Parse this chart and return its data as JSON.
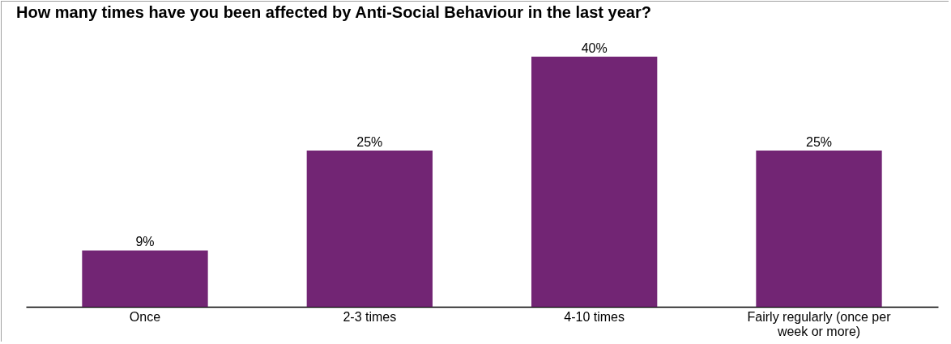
{
  "chart_data": {
    "type": "bar",
    "title": "How many times have you been affected by Anti-Social Behaviour in the last year?",
    "categories": [
      "Once",
      "2-3 times",
      "4-10 times",
      "Fairly regularly (once per week or more)"
    ],
    "values": [
      9,
      25,
      40,
      25
    ],
    "value_labels": [
      "9%",
      "25%",
      "40%",
      "25%"
    ],
    "color": "#722574",
    "grid": false
  }
}
